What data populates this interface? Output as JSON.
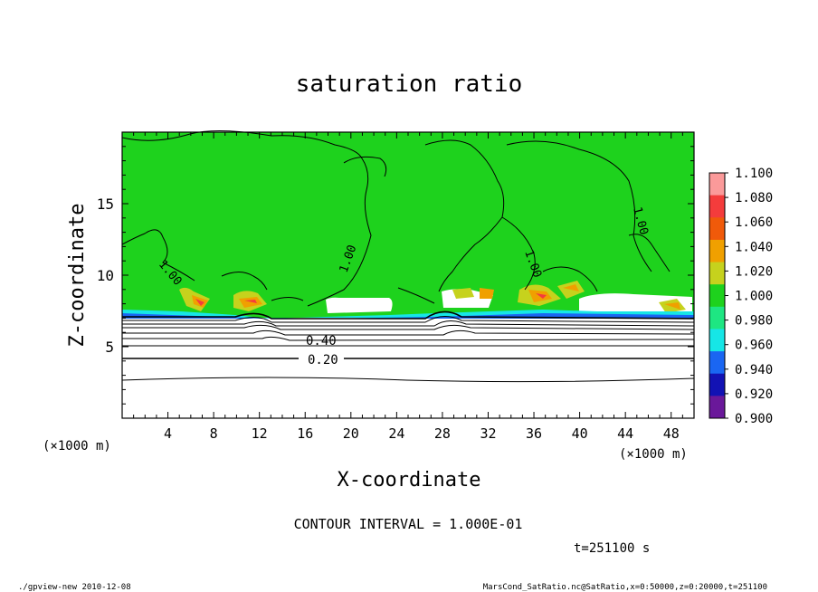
{
  "chart_data": {
    "type": "heatmap",
    "title": "saturation ratio",
    "xlabel": "X-coordinate",
    "ylabel": "Z-coordinate",
    "x_unit": "(×1000 m)",
    "x_unit_right": "(×1000 m)",
    "xlim": [
      0,
      50
    ],
    "ylim": [
      0,
      20
    ],
    "x_ticks": [
      "4",
      "8",
      "12",
      "16",
      "20",
      "24",
      "28",
      "32",
      "36",
      "40",
      "44",
      "48"
    ],
    "y_ticks": [
      "5",
      "10",
      "15"
    ],
    "contour_interval": "CONTOUR INTERVAL = 1.000E-01",
    "time_label": "t=251100 s",
    "contour_labels": [
      "1.00",
      "1.00",
      "1.00",
      "1.00",
      "0.40",
      "0.20"
    ],
    "colorbar": {
      "levels": [
        "1.100",
        "1.080",
        "1.060",
        "1.040",
        "1.020",
        "1.000",
        "0.980",
        "0.960",
        "0.940",
        "0.920",
        "0.900"
      ],
      "colors": [
        "#fb9a9a",
        "#f43c3c",
        "#f05a0a",
        "#f0a000",
        "#c6d21d",
        "#1ed21d",
        "#1ee682",
        "#16e6e6",
        "#1a66f2",
        "#1212b4",
        "#6a189a"
      ]
    },
    "field_summary": {
      "saturated_region": "z above ~8.5 (×1000 m), ratio ~1.00",
      "subsaturated_region": "z below ~7 (×1000 m), ratio < 0.9"
    }
  },
  "footer": {
    "left": "./gpview-new  2010-12-08",
    "right": "MarsCond_SatRatio.nc@SatRatio,x=0:50000,z=0:20000,t=251100"
  }
}
